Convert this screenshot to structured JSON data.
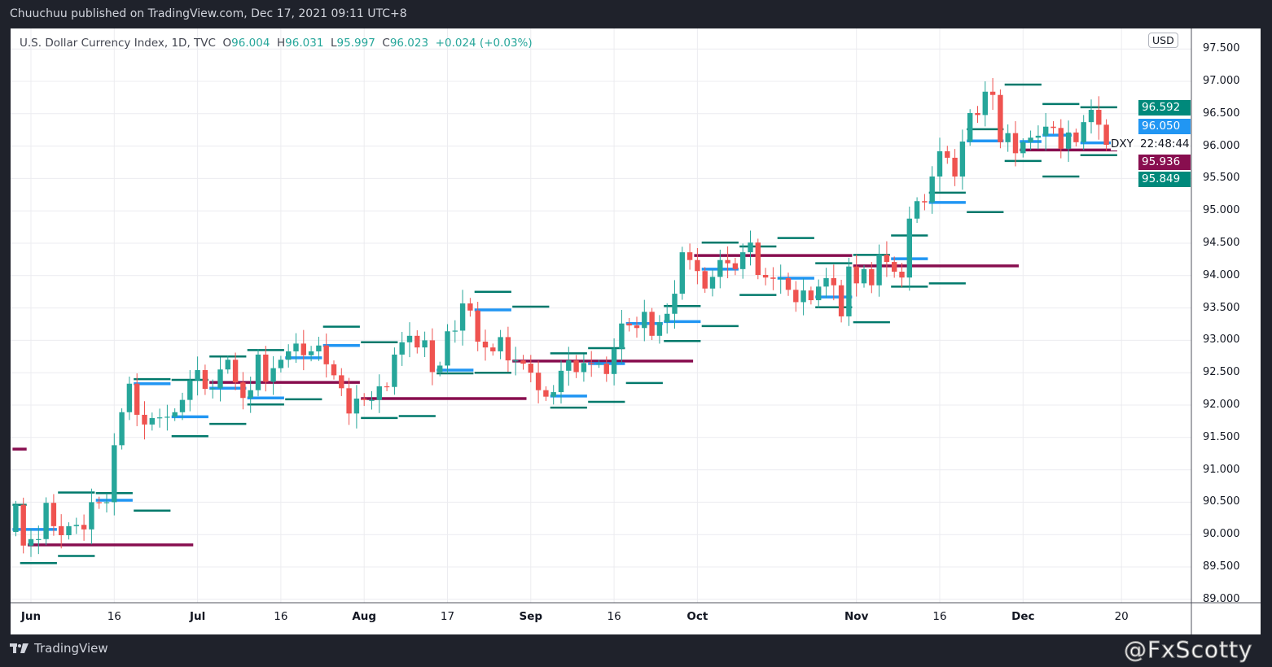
{
  "published": "Chuuchuu published on TradingView.com, Dec 17, 2021 09:11 UTC+8",
  "legend": {
    "symbol": "U.S. Dollar Currency Index, 1D, TVC",
    "o_label": "O",
    "o": "96.004",
    "h_label": "H",
    "h": "96.031",
    "l_label": "L",
    "l": "95.997",
    "c_label": "C",
    "c": "96.023",
    "change": "+0.024 (+0.03%)"
  },
  "currency_button": "USD",
  "ticker_label": "DXY",
  "countdown": "22:48:44",
  "badges": [
    {
      "text": "96.592",
      "color": "#00897b"
    },
    {
      "text": "96.050",
      "color": "#2196f3"
    },
    {
      "text": "95.936",
      "color": "#880e4f"
    },
    {
      "text": "95.849",
      "color": "#00897b"
    }
  ],
  "footer_brand": "TradingView",
  "watermark": "@FxScotty",
  "colors": {
    "up": "#26a69a",
    "down": "#ef5350",
    "pivot": "#00796b",
    "blue": "#2196f3",
    "maroon": "#880e4f",
    "grid": "#ececf0"
  },
  "chart_data": {
    "type": "candlestick",
    "title": "U.S. Dollar Currency Index, 1D, TVC",
    "ylim": [
      89.0,
      97.5
    ],
    "y_ticks": [
      "89.000",
      "89.500",
      "90.000",
      "90.500",
      "91.000",
      "91.500",
      "92.000",
      "92.500",
      "93.000",
      "93.500",
      "94.000",
      "94.500",
      "95.000",
      "95.500",
      "96.000",
      "96.500",
      "97.000",
      "97.500"
    ],
    "x_ticks": [
      {
        "label": "Jun",
        "bar": 2,
        "month": true
      },
      {
        "label": "16",
        "bar": 13
      },
      {
        "label": "Jul",
        "bar": 24,
        "month": true
      },
      {
        "label": "16",
        "bar": 35
      },
      {
        "label": "Aug",
        "bar": 46,
        "month": true
      },
      {
        "label": "17",
        "bar": 57
      },
      {
        "label": "Sep",
        "bar": 68,
        "month": true
      },
      {
        "label": "16",
        "bar": 79
      },
      {
        "label": "Oct",
        "bar": 90,
        "month": true
      },
      {
        "label": "Nov",
        "bar": 111,
        "month": true
      },
      {
        "label": "16",
        "bar": 122
      },
      {
        "label": "Dec",
        "bar": 133,
        "month": true
      },
      {
        "label": "20",
        "bar": 146
      }
    ],
    "first_open": 90.04,
    "closes": [
      90.46,
      89.83,
      89.93,
      89.93,
      90.49,
      90.13,
      89.99,
      90.13,
      90.15,
      90.08,
      90.5,
      90.49,
      90.5,
      91.38,
      91.89,
      92.33,
      91.85,
      91.7,
      91.8,
      91.81,
      91.82,
      91.89,
      92.08,
      92.38,
      92.54,
      92.25,
      92.26,
      92.55,
      92.7,
      92.35,
      92.11,
      92.23,
      92.78,
      92.36,
      92.57,
      92.7,
      92.83,
      92.95,
      92.77,
      92.83,
      92.92,
      92.63,
      92.46,
      92.26,
      91.87,
      92.1,
      92.08,
      92.08,
      92.29,
      92.28,
      92.78,
      92.97,
      93.07,
      92.89,
      93.0,
      92.51,
      92.61,
      93.14,
      93.15,
      93.57,
      93.46,
      92.98,
      92.89,
      92.83,
      93.05,
      92.69,
      92.69,
      92.64,
      92.5,
      92.23,
      92.13,
      92.2,
      92.53,
      92.69,
      92.51,
      92.65,
      92.64,
      92.64,
      92.48,
      92.87,
      93.26,
      93.23,
      93.19,
      93.44,
      93.07,
      93.28,
      93.41,
      93.72,
      94.36,
      94.24,
      94.07,
      93.8,
      93.98,
      94.24,
      94.19,
      94.1,
      94.36,
      94.51,
      94.01,
      93.97,
      93.95,
      93.96,
      93.78,
      93.59,
      93.77,
      93.62,
      93.83,
      93.96,
      93.85,
      93.37,
      94.14,
      93.88,
      94.1,
      93.85,
      94.32,
      94.21,
      94.06,
      93.97,
      94.88,
      95.15,
      95.13,
      95.53,
      95.92,
      95.82,
      95.53,
      96.07,
      96.51,
      96.48,
      96.84,
      96.79,
      96.06,
      96.2,
      95.89,
      96.06,
      96.13,
      96.16,
      96.3,
      96.28,
      95.96,
      96.21,
      96.06,
      96.37,
      96.56,
      96.33,
      96.02
    ],
    "levels": {
      "maroon": [
        [
          0,
          1,
          91.32
        ],
        [
          2,
          23,
          89.84
        ],
        [
          26,
          45,
          92.35
        ],
        [
          46,
          67,
          92.1
        ],
        [
          66,
          89,
          92.68
        ],
        [
          90,
          110,
          94.31
        ],
        [
          111,
          132,
          94.15
        ],
        [
          133,
          145,
          95.94
        ]
      ],
      "blue": [
        [
          0,
          5,
          90.08
        ],
        [
          11,
          15,
          90.53
        ],
        [
          16,
          20,
          92.33
        ],
        [
          21,
          25,
          91.82
        ],
        [
          26,
          30,
          92.26
        ],
        [
          31,
          35,
          92.11
        ],
        [
          36,
          40,
          92.73
        ],
        [
          41,
          45,
          92.92
        ],
        [
          56,
          60,
          92.54
        ],
        [
          61,
          65,
          93.47
        ],
        [
          71,
          75,
          92.14
        ],
        [
          76,
          80,
          92.64
        ],
        [
          81,
          85,
          93.26
        ],
        [
          86,
          90,
          93.29
        ],
        [
          91,
          95,
          94.1
        ],
        [
          101,
          105,
          93.96
        ],
        [
          106,
          110,
          93.67
        ],
        [
          116,
          120,
          94.26
        ],
        [
          121,
          125,
          95.13
        ],
        [
          126,
          130,
          96.08
        ],
        [
          133,
          135,
          96.07
        ],
        [
          136,
          139,
          96.17
        ],
        [
          141,
          145,
          96.05
        ]
      ],
      "pivot": [
        [
          0,
          1,
          90.46
        ],
        [
          6,
          10,
          90.65
        ],
        [
          1,
          5,
          89.56
        ],
        [
          6,
          10,
          89.67
        ],
        [
          11,
          15,
          90.64
        ],
        [
          16,
          20,
          90.37
        ],
        [
          16,
          20,
          92.4
        ],
        [
          21,
          25,
          91.52
        ],
        [
          21,
          25,
          92.39
        ],
        [
          26,
          30,
          91.71
        ],
        [
          26,
          30,
          92.75
        ],
        [
          31,
          35,
          92.01
        ],
        [
          31,
          35,
          92.85
        ],
        [
          36,
          40,
          92.09
        ],
        [
          41,
          45,
          93.21
        ],
        [
          46,
          50,
          92.97
        ],
        [
          46,
          50,
          91.8
        ],
        [
          51,
          55,
          91.83
        ],
        [
          56,
          60,
          92.49
        ],
        [
          61,
          65,
          93.75
        ],
        [
          61,
          65,
          92.5
        ],
        [
          66,
          70,
          93.52
        ],
        [
          71,
          75,
          92.8
        ],
        [
          71,
          75,
          91.96
        ],
        [
          76,
          80,
          92.88
        ],
        [
          76,
          80,
          92.05
        ],
        [
          81,
          85,
          92.34
        ],
        [
          86,
          90,
          93.53
        ],
        [
          86,
          90,
          92.99
        ],
        [
          91,
          95,
          94.51
        ],
        [
          91,
          95,
          93.22
        ],
        [
          96,
          100,
          93.7
        ],
        [
          96,
          100,
          94.45
        ],
        [
          101,
          105,
          94.58
        ],
        [
          106,
          110,
          94.19
        ],
        [
          106,
          110,
          93.51
        ],
        [
          111,
          115,
          93.28
        ],
        [
          111,
          115,
          94.32
        ],
        [
          116,
          120,
          93.83
        ],
        [
          116,
          120,
          94.62
        ],
        [
          121,
          125,
          93.88
        ],
        [
          121,
          125,
          95.28
        ],
        [
          126,
          130,
          94.98
        ],
        [
          126,
          130,
          96.26
        ],
        [
          131,
          135,
          96.95
        ],
        [
          131,
          135,
          95.77
        ],
        [
          136,
          140,
          96.65
        ],
        [
          136,
          140,
          95.53
        ],
        [
          141,
          145,
          96.6
        ],
        [
          141,
          145,
          95.86
        ]
      ]
    }
  }
}
